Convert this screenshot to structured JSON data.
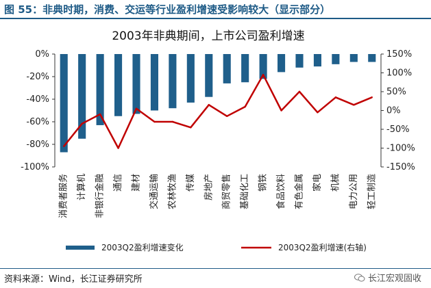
{
  "header": {
    "figure_title": "图 55：非典时期，消费、交运等行业盈利增速受影响较大（显示部分）"
  },
  "footer": {
    "source": "资料来源：Wind，长江证券研究所",
    "brand": "长江宏观固收",
    "brand_icon": "wechat-icon"
  },
  "colors": {
    "bar": "#1f5f8b",
    "line": "#c00000",
    "header": "#1d5a86"
  },
  "chart_data": {
    "type": "bar",
    "title": "2003年非典期间，上市公司盈利增速",
    "categories": [
      "消费者服务",
      "计算机",
      "非银行金融",
      "通信",
      "建材",
      "交通运输",
      "农林牧渔",
      "传媒",
      "房地产",
      "商贸零售",
      "基础化工",
      "钢铁",
      "食品饮料",
      "有色金属",
      "家电",
      "机械",
      "电力公用",
      "轻工制造"
    ],
    "series": [
      {
        "name": "2003Q2盈利增速变化",
        "type": "bar",
        "axis": "left",
        "values": [
          -87,
          -75,
          -63,
          -55,
          -53,
          -50,
          -48,
          -43,
          -38,
          -26,
          -25,
          -22,
          -16,
          -12,
          -11,
          -9,
          -7,
          -7
        ]
      },
      {
        "name": "2003Q2盈利增速(右轴)",
        "type": "line",
        "axis": "right",
        "values": [
          -95,
          -35,
          -10,
          -100,
          5,
          -30,
          -30,
          -45,
          15,
          -15,
          10,
          95,
          0,
          50,
          -5,
          35,
          15,
          35
        ]
      }
    ],
    "y_left": {
      "lim": [
        -100,
        0
      ],
      "ticks": [
        "0%",
        "-20%",
        "-40%",
        "-60%",
        "-80%",
        "-100%"
      ]
    },
    "y_right": {
      "lim": [
        -150,
        150
      ],
      "ticks": [
        "150%",
        "100%",
        "50%",
        "0%",
        "-50%",
        "-100%",
        "-150%"
      ]
    },
    "legend_position": "bottom",
    "grid": false
  }
}
